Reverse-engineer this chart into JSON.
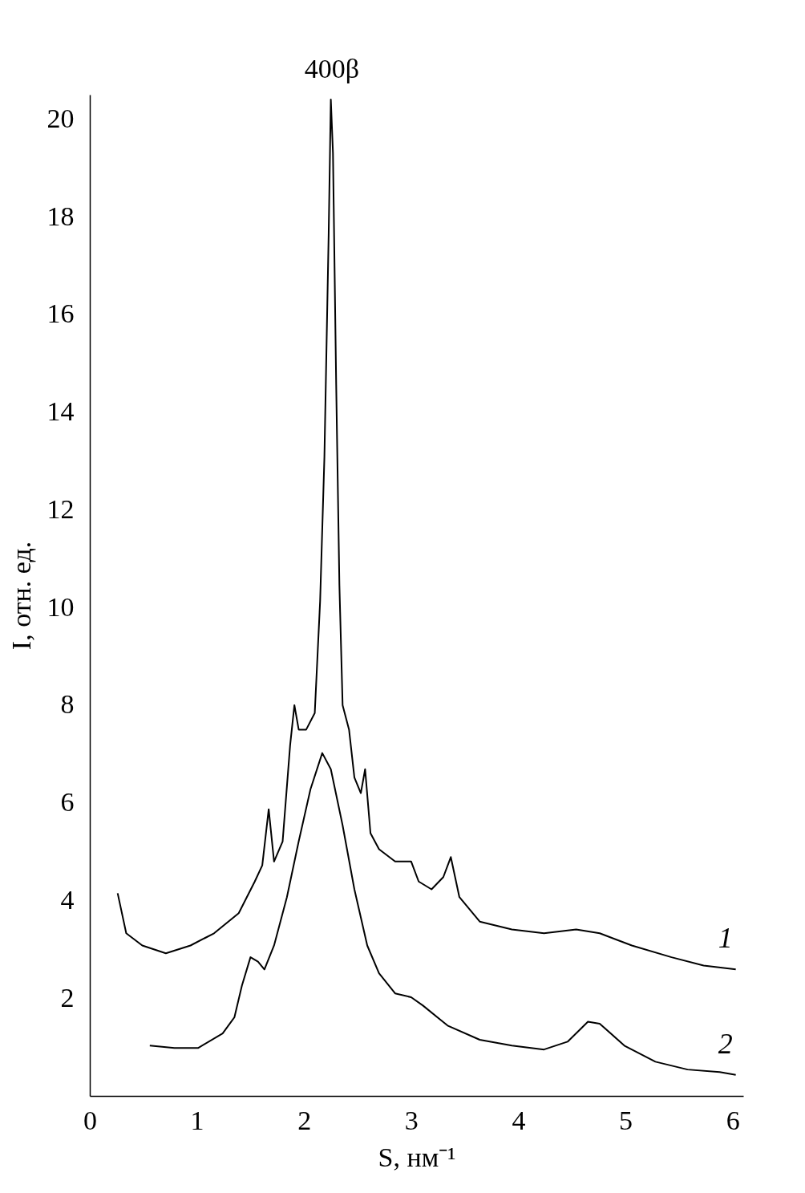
{
  "chart_data": {
    "type": "line",
    "xlabel": "S, нм⁻¹",
    "ylabel": "I, отн. ед.",
    "xlim": [
      0,
      6.1
    ],
    "ylim": [
      0,
      20.5
    ],
    "xticks": [
      0,
      1,
      2,
      3,
      4,
      5,
      6
    ],
    "yticks": [
      2,
      4,
      6,
      8,
      10,
      12,
      14,
      16,
      18,
      20
    ],
    "grid": false,
    "legend": false,
    "marker": "none",
    "line_style": "solid",
    "annotations": [
      "400β"
    ],
    "series": [
      {
        "name": "1",
        "color": "#000000",
        "x": [
          0.26,
          0.34,
          0.49,
          0.71,
          0.94,
          1.16,
          1.39,
          1.54,
          1.61,
          1.67,
          1.72,
          1.8,
          1.87,
          1.91,
          1.95,
          2.02,
          2.1,
          2.15,
          2.19,
          2.23,
          2.25,
          2.27,
          2.3,
          2.33,
          2.36,
          2.42,
          2.47,
          2.53,
          2.57,
          2.62,
          2.7,
          2.85,
          3.0,
          3.07,
          3.19,
          3.3,
          3.37,
          3.45,
          3.64,
          3.94,
          4.24,
          4.54,
          4.76,
          5.06,
          5.43,
          5.73,
          6.03
        ],
        "values": [
          4.15,
          3.33,
          3.08,
          2.92,
          3.08,
          3.33,
          3.74,
          4.39,
          4.72,
          5.87,
          4.8,
          5.21,
          7.18,
          8.0,
          7.5,
          7.5,
          7.84,
          10.13,
          13.08,
          17.67,
          20.4,
          19.3,
          14.56,
          10.46,
          8.0,
          7.5,
          6.52,
          6.2,
          6.69,
          5.38,
          5.05,
          4.8,
          4.8,
          4.39,
          4.23,
          4.48,
          4.89,
          4.07,
          3.57,
          3.41,
          3.33,
          3.41,
          3.33,
          3.08,
          2.84,
          2.67,
          2.59
        ]
      },
      {
        "name": "2",
        "color": "#000000",
        "x": [
          0.56,
          0.79,
          1.01,
          1.24,
          1.35,
          1.42,
          1.5,
          1.57,
          1.63,
          1.72,
          1.84,
          1.95,
          2.06,
          2.17,
          2.25,
          2.36,
          2.47,
          2.59,
          2.7,
          2.85,
          3.0,
          3.11,
          3.34,
          3.64,
          3.94,
          4.24,
          4.46,
          4.65,
          4.76,
          4.99,
          5.28,
          5.58,
          5.88,
          6.03
        ],
        "values": [
          1.03,
          0.98,
          0.98,
          1.28,
          1.61,
          2.26,
          2.84,
          2.75,
          2.59,
          3.08,
          4.07,
          5.21,
          6.28,
          7.02,
          6.69,
          5.54,
          4.23,
          3.08,
          2.51,
          2.1,
          2.02,
          1.85,
          1.44,
          1.15,
          1.03,
          0.95,
          1.11,
          1.52,
          1.48,
          1.03,
          0.7,
          0.54,
          0.49,
          0.43
        ]
      }
    ]
  }
}
